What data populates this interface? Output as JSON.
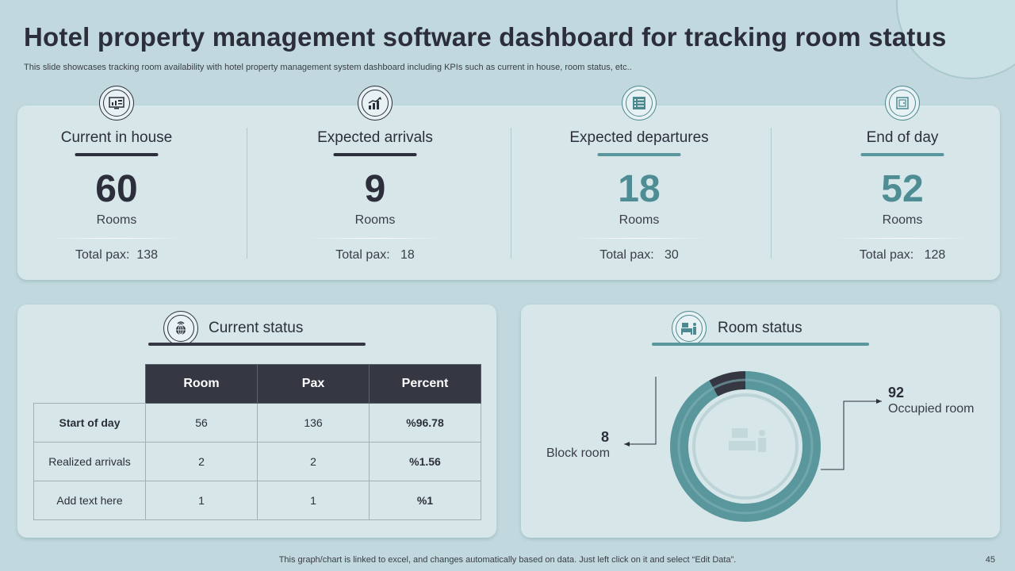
{
  "title": "Hotel property management software dashboard for tracking room status",
  "subtitle": "This slide showcases tracking room availability with hotel property management system dashboard including KPIs such as current in house, room status, etc..",
  "kpis": [
    {
      "label": "Current in house",
      "value": "60",
      "unit": "Rooms",
      "pax_label": "Total pax:",
      "pax_value": "138",
      "icon": "monitor-chart-icon"
    },
    {
      "label": "Expected arrivals",
      "value": "9",
      "unit": "Rooms",
      "pax_label": "Total pax:",
      "pax_value": "18",
      "icon": "growth-chart-icon"
    },
    {
      "label": "Expected departures",
      "value": "18",
      "unit": "Rooms",
      "pax_label": "Total pax:",
      "pax_value": "30",
      "icon": "checklist-icon"
    },
    {
      "label": "End of day",
      "value": "52",
      "unit": "Rooms",
      "pax_label": "Total pax:",
      "pax_value": "128",
      "icon": "door-icon"
    }
  ],
  "current_status": {
    "title": "Current status",
    "icon": "globe-signal-icon",
    "columns": [
      "Room",
      "Pax",
      "Percent"
    ],
    "rows": [
      {
        "label": "Start of day",
        "room": "56",
        "pax": "136",
        "percent": "%96.78"
      },
      {
        "label": "Realized arrivals",
        "room": "2",
        "pax": "2",
        "percent": "%1.56"
      },
      {
        "label": "Add text here",
        "room": "1",
        "pax": "1",
        "percent": "%1"
      }
    ]
  },
  "room_status": {
    "title": "Room status",
    "icon": "hotel-room-icon",
    "occupied_value": "92",
    "occupied_label": "Occupied room",
    "block_value": "8",
    "block_label": "Block room"
  },
  "chart_data": {
    "type": "pie",
    "categories": [
      "Occupied room",
      "Block room"
    ],
    "values": [
      92,
      8
    ]
  },
  "colors": {
    "dark": "#353843",
    "teal": "#5a979d",
    "background": "#c1d9de",
    "panel": "#d6e6e9"
  },
  "footer": "This graph/chart is linked to excel, and changes automatically based on data. Just left click on it and select “Edit Data”.",
  "page_number": "45"
}
